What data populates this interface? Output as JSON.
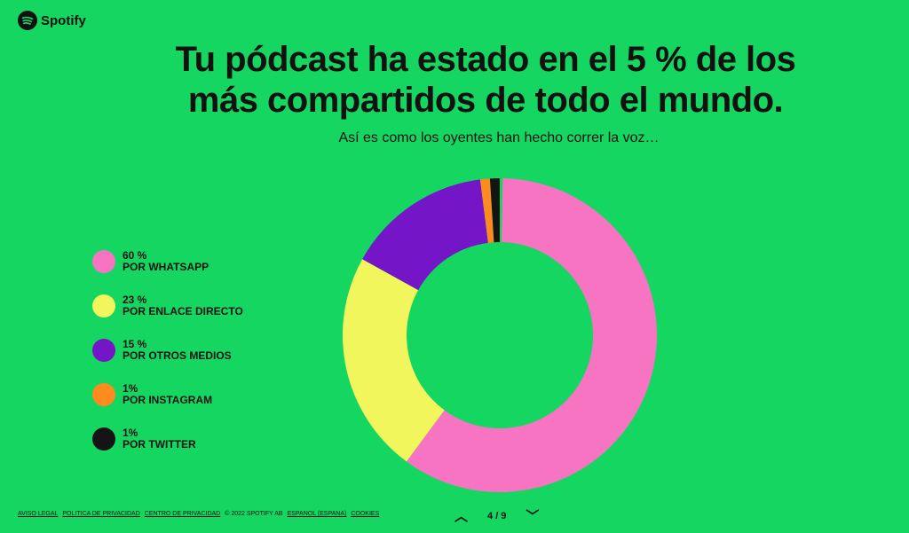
{
  "brand": "Spotify",
  "title_line1": "Tu pódcast ha estado en el 5 % de los",
  "title_line2": "más compartidos de todo el mundo.",
  "subtitle": "Así es como los oyentes han hecho correr la voz…",
  "chart_data": {
    "type": "pie",
    "donut": true,
    "slices": [
      {
        "label": "POR WHATSAPP",
        "percent_label": "60 %",
        "value": 60,
        "color": "#f674c2"
      },
      {
        "label": "POR ENLACE DIRECTO",
        "percent_label": "23 %",
        "value": 23,
        "color": "#f0f65c"
      },
      {
        "label": "POR OTROS MEDIOS",
        "percent_label": "15 %",
        "value": 15,
        "color": "#7415c7"
      },
      {
        "label": "POR INSTAGRAM",
        "percent_label": "1%",
        "value": 1,
        "color": "#ff8a1e"
      },
      {
        "label": "POR TWITTER",
        "percent_label": "1%",
        "value": 1,
        "color": "#141414"
      }
    ],
    "legend_position": "left"
  },
  "footer": {
    "links": [
      "AVISO LEGAL",
      "POLITICA DE PRIVACIDAD",
      "CENTRO DE PRIVACIDAD"
    ],
    "copyright": "© 2022 SPOTIFY AB",
    "language": "ESPANOL (ESPANA)",
    "cookies": "COOKIES"
  },
  "pager": {
    "text": "4 / 9"
  },
  "colors": {
    "background": "#15d661"
  }
}
